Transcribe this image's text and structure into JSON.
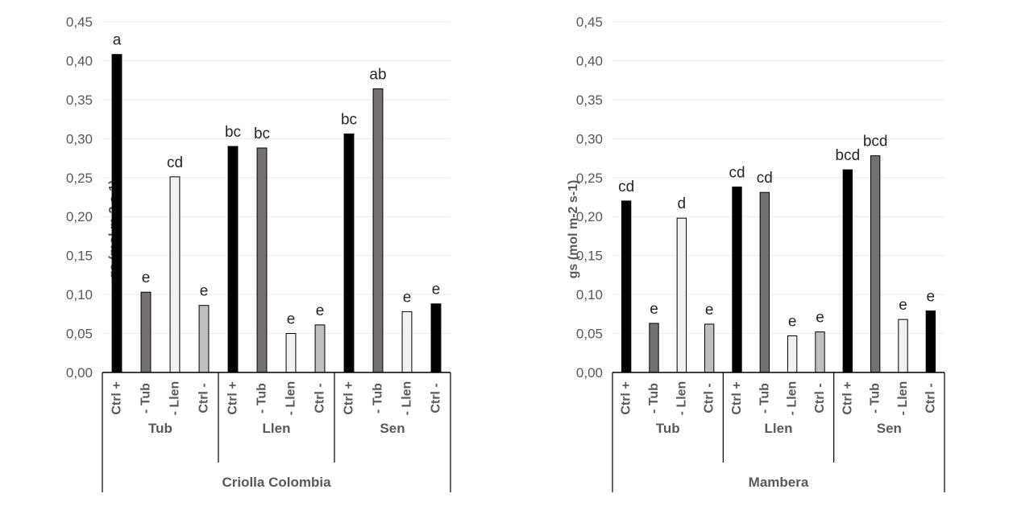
{
  "chart_data": [
    {
      "type": "bar",
      "ylabel": "gs (mol m-2 s-1)",
      "ylim": [
        0,
        0.45
      ],
      "yticks": [
        "0,00",
        "0,05",
        "0,10",
        "0,15",
        "0,20",
        "0,25",
        "0,30",
        "0,35",
        "0,40",
        "0,45"
      ],
      "grid": true,
      "group_title": "Criolla Colombia",
      "groups": [
        "Tub",
        "Llen",
        "Sen"
      ],
      "categories": [
        "Ctrl +",
        "- Tub",
        "- Llen",
        "Ctrl -",
        "Ctrl +",
        "- Tub",
        "- Llen",
        "Ctrl -",
        "Ctrl +",
        "- Tub",
        "- Llen",
        "Ctrl -"
      ],
      "values": [
        0.408,
        0.103,
        0.251,
        0.086,
        0.29,
        0.288,
        0.05,
        0.061,
        0.306,
        0.364,
        0.078,
        0.088
      ],
      "labels": [
        "a",
        "e",
        "cd",
        "e",
        "bc",
        "bc",
        "e",
        "e",
        "bc",
        "ab",
        "e",
        "e"
      ],
      "colors": [
        "#000000",
        "#767171",
        "#f2f2f2",
        "#bfbfbf",
        "#000000",
        "#767171",
        "#f2f2f2",
        "#bfbfbf",
        "#000000",
        "#767171",
        "#f2f2f2",
        "#000000"
      ]
    },
    {
      "type": "bar",
      "ylabel": "gs (mol m-2 s-1)",
      "ylim": [
        0,
        0.45
      ],
      "yticks": [
        "0,00",
        "0,05",
        "0,10",
        "0,15",
        "0,20",
        "0,25",
        "0,30",
        "0,35",
        "0,40",
        "0,45"
      ],
      "grid": true,
      "group_title": "Mambera",
      "groups": [
        "Tub",
        "Llen",
        "Sen"
      ],
      "categories": [
        "Ctrl +",
        "- Tub",
        "- Llen",
        "Ctrl -",
        "Ctrl +",
        "- Tub",
        "- Llen",
        "Ctrl -",
        "Ctrl +",
        "- Tub",
        "- Llen",
        "Ctrl -"
      ],
      "values": [
        0.22,
        0.063,
        0.198,
        0.062,
        0.238,
        0.231,
        0.047,
        0.052,
        0.26,
        0.278,
        0.068,
        0.079
      ],
      "labels": [
        "cd",
        "e",
        "d",
        "e",
        "cd",
        "cd",
        "e",
        "e",
        "bcd",
        "bcd",
        "e",
        "e"
      ],
      "colors": [
        "#000000",
        "#767171",
        "#f2f2f2",
        "#bfbfbf",
        "#000000",
        "#767171",
        "#f2f2f2",
        "#bfbfbf",
        "#000000",
        "#767171",
        "#f2f2f2",
        "#000000"
      ]
    }
  ]
}
